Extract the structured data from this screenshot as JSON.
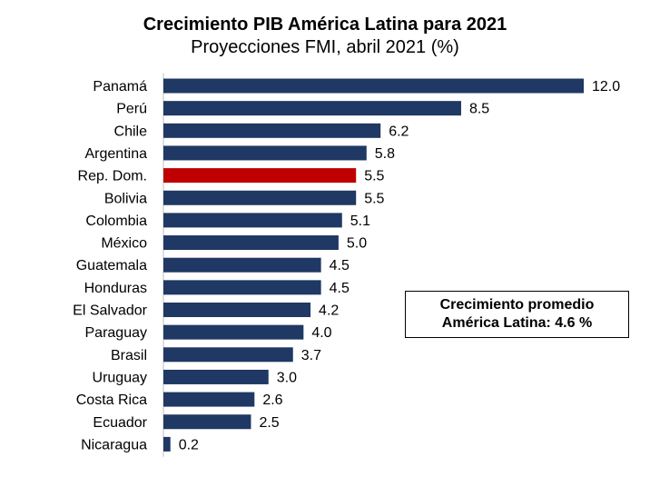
{
  "chart_data": {
    "type": "bar",
    "orientation": "horizontal",
    "title": "Crecimiento PIB América Latina para 2021",
    "subtitle": "Proyecciones FMI, abril 2021 (%)",
    "categories": [
      "Panamá",
      "Perú",
      "Chile",
      "Argentina",
      "Rep. Dom.",
      "Bolivia",
      "Colombia",
      "México",
      "Guatemala",
      "Honduras",
      "El Salvador",
      "Paraguay",
      "Brasil",
      "Uruguay",
      "Costa Rica",
      "Ecuador",
      "Nicaragua"
    ],
    "values": [
      12.0,
      8.5,
      6.2,
      5.8,
      5.5,
      5.5,
      5.1,
      5.0,
      4.5,
      4.5,
      4.2,
      4.0,
      3.7,
      3.0,
      2.6,
      2.5,
      0.2
    ],
    "value_labels": [
      "12.0",
      "8.5",
      "6.2",
      "5.8",
      "5.5",
      "5.5",
      "5.1",
      "5.0",
      "4.5",
      "4.5",
      "4.2",
      "4.0",
      "3.7",
      "3.0",
      "2.6",
      "2.5",
      "0.2"
    ],
    "highlight_category": "Rep. Dom.",
    "colors": {
      "bar": "#1f3864",
      "highlight": "#c00000"
    },
    "xlim": [
      0,
      12.0
    ],
    "grid": false,
    "legend": "none"
  },
  "annotation": {
    "line1": "Crecimiento promedio",
    "line2": "América Latina: 4.6 %"
  }
}
